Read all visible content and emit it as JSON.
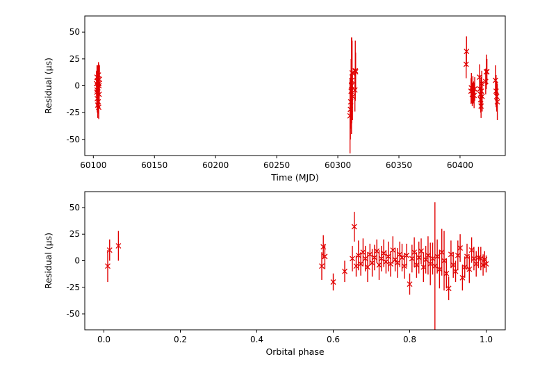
{
  "chart_data": [
    {
      "type": "scatter",
      "name": "residual-vs-time",
      "xlabel": "Time (MJD)",
      "ylabel": "Residual (μs)",
      "xlim": [
        60093,
        60437
      ],
      "ylim": [
        -65,
        65
      ],
      "xticks": [
        60100,
        60150,
        60200,
        60250,
        60300,
        60350,
        60400
      ],
      "yticks": [
        -50,
        -25,
        0,
        25,
        50
      ],
      "color": "#e00000",
      "marker": "x",
      "grid": false,
      "points": [
        {
          "x": 60102.6,
          "y": 2,
          "err": 12
        },
        {
          "x": 60102.8,
          "y": -6,
          "err": 14
        },
        {
          "x": 60103.0,
          "y": 8,
          "err": 11
        },
        {
          "x": 60103.2,
          "y": -12,
          "err": 13
        },
        {
          "x": 60103.4,
          "y": 4,
          "err": 15
        },
        {
          "x": 60103.6,
          "y": -18,
          "err": 12
        },
        {
          "x": 60103.8,
          "y": -2,
          "err": 13
        },
        {
          "x": 60104.0,
          "y": -15,
          "err": 11
        },
        {
          "x": 60104.2,
          "y": 10,
          "err": 12
        },
        {
          "x": 60104.4,
          "y": -20,
          "err": 11
        },
        {
          "x": 60104.6,
          "y": 0,
          "err": 14
        },
        {
          "x": 60104.8,
          "y": -8,
          "err": 12
        },
        {
          "x": 60105.0,
          "y": 6,
          "err": 13
        },
        {
          "x": 60103.1,
          "y": -4,
          "err": 17
        },
        {
          "x": 60104.5,
          "y": 2,
          "err": 18
        },
        {
          "x": 60310.0,
          "y": -28,
          "err": 35
        },
        {
          "x": 60310.3,
          "y": -22,
          "err": 28
        },
        {
          "x": 60310.6,
          "y": -15,
          "err": 25
        },
        {
          "x": 60310.9,
          "y": -5,
          "err": 30
        },
        {
          "x": 60311.2,
          "y": 0,
          "err": 45
        },
        {
          "x": 60311.4,
          "y": 5,
          "err": 40
        },
        {
          "x": 60311.7,
          "y": 12,
          "err": 30
        },
        {
          "x": 60312.0,
          "y": -10,
          "err": 22
        },
        {
          "x": 60314.0,
          "y": -4,
          "err": 20
        },
        {
          "x": 60314.3,
          "y": 14,
          "err": 28
        },
        {
          "x": 60314.6,
          "y": 13,
          "err": 18
        },
        {
          "x": 60405.0,
          "y": 20,
          "err": 13
        },
        {
          "x": 60405.3,
          "y": 32,
          "err": 14
        },
        {
          "x": 60409.0,
          "y": -5,
          "err": 12
        },
        {
          "x": 60409.3,
          "y": -2,
          "err": 14
        },
        {
          "x": 60410.0,
          "y": -8,
          "err": 11
        },
        {
          "x": 60410.5,
          "y": -4,
          "err": 13
        },
        {
          "x": 60411.0,
          "y": -6,
          "err": 10
        },
        {
          "x": 60411.5,
          "y": -9,
          "err": 12
        },
        {
          "x": 60412.0,
          "y": -3,
          "err": 11
        },
        {
          "x": 60416.0,
          "y": 8,
          "err": 12
        },
        {
          "x": 60416.3,
          "y": -3,
          "err": 13
        },
        {
          "x": 60416.6,
          "y": -8,
          "err": 14
        },
        {
          "x": 60416.9,
          "y": -13,
          "err": 12
        },
        {
          "x": 60417.2,
          "y": -19,
          "err": 11
        },
        {
          "x": 60417.5,
          "y": -5,
          "err": 13
        },
        {
          "x": 60417.8,
          "y": 2,
          "err": 12
        },
        {
          "x": 60418.1,
          "y": -10,
          "err": 14
        },
        {
          "x": 60421.0,
          "y": 4,
          "err": 12
        },
        {
          "x": 60421.5,
          "y": 13,
          "err": 16
        },
        {
          "x": 60422.0,
          "y": 13,
          "err": 12
        },
        {
          "x": 60429.0,
          "y": 5,
          "err": 14
        },
        {
          "x": 60429.5,
          "y": -5,
          "err": 15
        },
        {
          "x": 60430.0,
          "y": -10,
          "err": 14
        },
        {
          "x": 60430.5,
          "y": -15,
          "err": 17
        }
      ]
    },
    {
      "type": "scatter",
      "name": "residual-vs-orbital-phase",
      "xlabel": "Orbital phase",
      "ylabel": "Residual (μs)",
      "xlim": [
        -0.05,
        1.05
      ],
      "ylim": [
        -65,
        65
      ],
      "xticks": [
        0.0,
        0.2,
        0.4,
        0.6,
        0.8,
        1.0
      ],
      "xticklabels": [
        "0.0",
        "0.2",
        "0.4",
        "0.6",
        "0.8",
        "1.0"
      ],
      "yticks": [
        -50,
        -25,
        0,
        25,
        50
      ],
      "color": "#e00000",
      "marker": "x",
      "grid": false,
      "points": [
        {
          "x": 0.01,
          "y": -5,
          "err": 15
        },
        {
          "x": 0.015,
          "y": 10,
          "err": 10
        },
        {
          "x": 0.038,
          "y": 14,
          "err": 14
        },
        {
          "x": 0.57,
          "y": -5,
          "err": 13
        },
        {
          "x": 0.574,
          "y": 13,
          "err": 11
        },
        {
          "x": 0.578,
          "y": 4,
          "err": 12
        },
        {
          "x": 0.6,
          "y": -20,
          "err": 8
        },
        {
          "x": 0.63,
          "y": -10,
          "err": 10
        },
        {
          "x": 0.65,
          "y": 2,
          "err": 12
        },
        {
          "x": 0.655,
          "y": 32,
          "err": 14
        },
        {
          "x": 0.66,
          "y": -5,
          "err": 10
        },
        {
          "x": 0.666,
          "y": 5,
          "err": 14
        },
        {
          "x": 0.672,
          "y": -3,
          "err": 11
        },
        {
          "x": 0.678,
          "y": 8,
          "err": 13
        },
        {
          "x": 0.684,
          "y": 2,
          "err": 12
        },
        {
          "x": 0.69,
          "y": -6,
          "err": 14
        },
        {
          "x": 0.696,
          "y": 6,
          "err": 10
        },
        {
          "x": 0.702,
          "y": -2,
          "err": 13
        },
        {
          "x": 0.708,
          "y": 3,
          "err": 12
        },
        {
          "x": 0.714,
          "y": 9,
          "err": 11
        },
        {
          "x": 0.72,
          "y": -4,
          "err": 14
        },
        {
          "x": 0.726,
          "y": 2,
          "err": 12
        },
        {
          "x": 0.732,
          "y": 7,
          "err": 13
        },
        {
          "x": 0.738,
          "y": -1,
          "err": 11
        },
        {
          "x": 0.744,
          "y": 4,
          "err": 14
        },
        {
          "x": 0.75,
          "y": -3,
          "err": 12
        },
        {
          "x": 0.756,
          "y": 10,
          "err": 13
        },
        {
          "x": 0.762,
          "y": 1,
          "err": 11
        },
        {
          "x": 0.768,
          "y": -2,
          "err": 14
        },
        {
          "x": 0.774,
          "y": 6,
          "err": 12
        },
        {
          "x": 0.78,
          "y": 3,
          "err": 13
        },
        {
          "x": 0.786,
          "y": -5,
          "err": 12
        },
        {
          "x": 0.792,
          "y": 5,
          "err": 11
        },
        {
          "x": 0.8,
          "y": -22,
          "err": 10
        },
        {
          "x": 0.806,
          "y": 2,
          "err": 13
        },
        {
          "x": 0.812,
          "y": 8,
          "err": 14
        },
        {
          "x": 0.818,
          "y": -4,
          "err": 12
        },
        {
          "x": 0.824,
          "y": 3,
          "err": 15
        },
        {
          "x": 0.83,
          "y": 9,
          "err": 12
        },
        {
          "x": 0.836,
          "y": -6,
          "err": 14
        },
        {
          "x": 0.842,
          "y": 1,
          "err": 13
        },
        {
          "x": 0.848,
          "y": 5,
          "err": 18
        },
        {
          "x": 0.854,
          "y": -3,
          "err": 20
        },
        {
          "x": 0.86,
          "y": 2,
          "err": 15
        },
        {
          "x": 0.866,
          "y": -5,
          "err": 60
        },
        {
          "x": 0.872,
          "y": 4,
          "err": 16
        },
        {
          "x": 0.878,
          "y": -8,
          "err": 18
        },
        {
          "x": 0.884,
          "y": 8,
          "err": 22
        },
        {
          "x": 0.89,
          "y": 0,
          "err": 28
        },
        {
          "x": 0.896,
          "y": -12,
          "err": 14
        },
        {
          "x": 0.902,
          "y": -26,
          "err": 11
        },
        {
          "x": 0.908,
          "y": 6,
          "err": 13
        },
        {
          "x": 0.914,
          "y": -4,
          "err": 12
        },
        {
          "x": 0.92,
          "y": -10,
          "err": 10
        },
        {
          "x": 0.926,
          "y": 5,
          "err": 14
        },
        {
          "x": 0.932,
          "y": 12,
          "err": 13
        },
        {
          "x": 0.938,
          "y": -16,
          "err": 12
        },
        {
          "x": 0.944,
          "y": -6,
          "err": 10
        },
        {
          "x": 0.95,
          "y": 4,
          "err": 12
        },
        {
          "x": 0.956,
          "y": -8,
          "err": 13
        },
        {
          "x": 0.962,
          "y": 10,
          "err": 12
        },
        {
          "x": 0.968,
          "y": 2,
          "err": 11
        },
        {
          "x": 0.974,
          "y": -3,
          "err": 12
        },
        {
          "x": 0.98,
          "y": 3,
          "err": 10
        },
        {
          "x": 0.986,
          "y": 2,
          "err": 11
        },
        {
          "x": 0.992,
          "y": -4,
          "err": 10
        },
        {
          "x": 0.996,
          "y": 1,
          "err": 8
        },
        {
          "x": 1.0,
          "y": -3,
          "err": 8
        }
      ]
    }
  ]
}
